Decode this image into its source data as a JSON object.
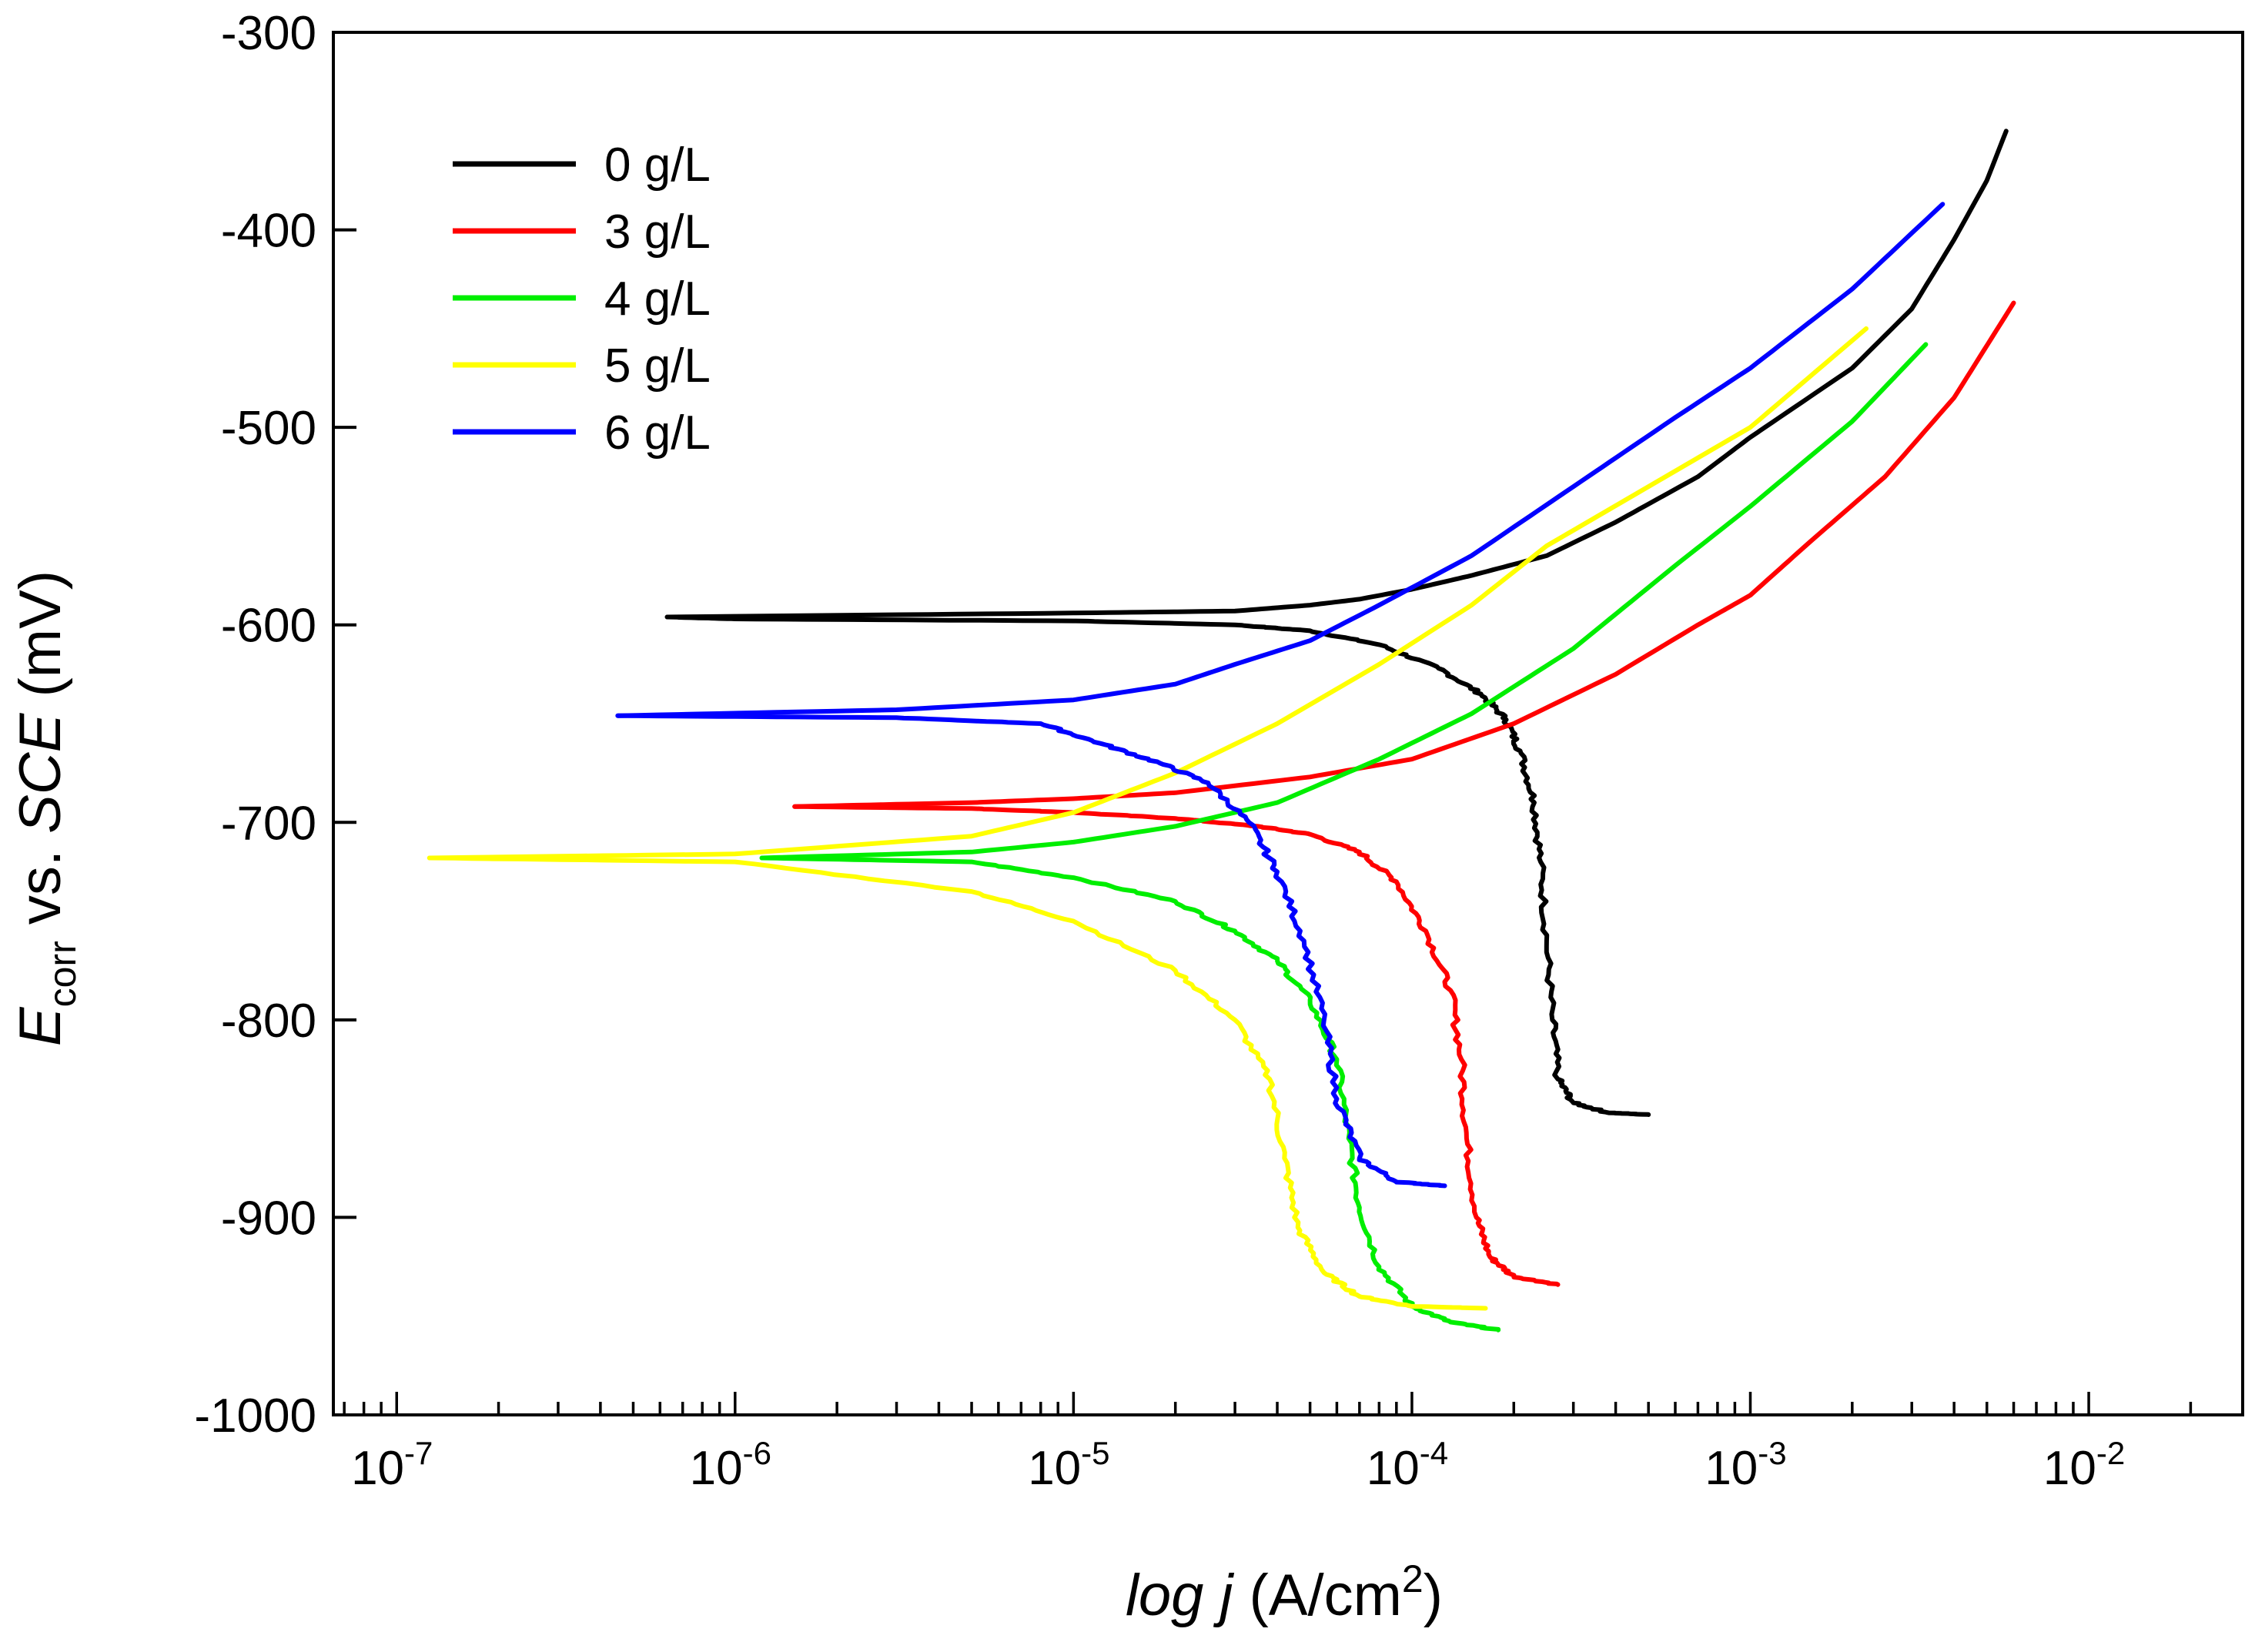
{
  "chart_data": {
    "type": "line",
    "title": "",
    "xlabel": {
      "italic": "log j",
      "text": " (A/cm",
      "sup": "2",
      "close": ")"
    },
    "ylabel": {
      "main": "E",
      "sub": "corr",
      "text": " vs. ",
      "italic": "SCE",
      "unit": " (mV)"
    },
    "x_scale": "log",
    "xlim": [
      6.5e-08,
      0.0285
    ],
    "ylim": [
      -1000,
      -300
    ],
    "x_ticks": [
      {
        "value": 1e-07,
        "base": "10",
        "exp": "-7"
      },
      {
        "value": 1e-06,
        "base": "10",
        "exp": "-6"
      },
      {
        "value": 1e-05,
        "base": "10",
        "exp": "-5"
      },
      {
        "value": 0.0001,
        "base": "10",
        "exp": "-4"
      },
      {
        "value": 0.001,
        "base": "10",
        "exp": "-3"
      },
      {
        "value": 0.01,
        "base": "10",
        "exp": "-2"
      }
    ],
    "y_ticks": [
      {
        "value": -300,
        "label": "-300"
      },
      {
        "value": -400,
        "label": "-400"
      },
      {
        "value": -500,
        "label": "-500"
      },
      {
        "value": -600,
        "label": "-600"
      },
      {
        "value": -700,
        "label": "-700"
      },
      {
        "value": -800,
        "label": "-800"
      },
      {
        "value": -900,
        "label": "-900"
      },
      {
        "value": -1000,
        "label": "-1000"
      }
    ],
    "grid": false,
    "legend_position": "top-left",
    "series": [
      {
        "name": "0 g/L",
        "color": "#000000",
        "cathodic": [
          [
            6.3e-07,
            -596
          ],
          [
            1e-06,
            -597
          ],
          [
            1e-05,
            -598
          ],
          [
            3e-05,
            -600
          ],
          [
            5e-05,
            -603
          ],
          [
            8e-05,
            -610
          ],
          [
            0.00012,
            -622
          ],
          [
            0.00016,
            -635
          ],
          [
            0.00019,
            -648
          ],
          [
            0.00021,
            -665
          ],
          [
            0.00023,
            -690
          ],
          [
            0.00024,
            -720
          ],
          [
            0.00025,
            -760
          ],
          [
            0.00026,
            -800
          ],
          [
            0.00027,
            -830
          ],
          [
            0.0003,
            -842
          ],
          [
            0.00038,
            -847
          ],
          [
            0.0005,
            -848
          ]
        ],
        "anodic": [
          [
            6.3e-07,
            -596
          ],
          [
            1e-05,
            -594
          ],
          [
            3e-05,
            -593
          ],
          [
            5e-05,
            -590
          ],
          [
            7e-05,
            -587
          ],
          [
            0.0001,
            -582
          ],
          [
            0.00015,
            -575
          ],
          [
            0.00025,
            -565
          ],
          [
            0.0004,
            -548
          ],
          [
            0.0007,
            -525
          ],
          [
            0.001,
            -505
          ],
          [
            0.002,
            -470
          ],
          [
            0.003,
            -440
          ],
          [
            0.004,
            -405
          ],
          [
            0.005,
            -375
          ],
          [
            0.0057,
            -350
          ]
        ]
      },
      {
        "name": "3 g/L",
        "color": "#ff0000",
        "cathodic": [
          [
            1.5e-06,
            -692
          ],
          [
            5e-06,
            -693
          ],
          [
            1e-05,
            -695
          ],
          [
            2e-05,
            -698
          ],
          [
            3.5e-05,
            -702
          ],
          [
            5e-05,
            -706
          ],
          [
            7e-05,
            -715
          ],
          [
            9e-05,
            -730
          ],
          [
            0.00011,
            -755
          ],
          [
            0.00013,
            -785
          ],
          [
            0.00014,
            -820
          ],
          [
            0.000145,
            -860
          ],
          [
            0.000155,
            -900
          ],
          [
            0.00017,
            -920
          ],
          [
            0.0002,
            -930
          ],
          [
            0.00027,
            -934
          ]
        ],
        "anodic": [
          [
            1.5e-06,
            -692
          ],
          [
            5e-06,
            -690
          ],
          [
            1e-05,
            -688
          ],
          [
            2e-05,
            -685
          ],
          [
            5e-05,
            -677
          ],
          [
            0.0001,
            -668
          ],
          [
            0.0002,
            -650
          ],
          [
            0.0004,
            -625
          ],
          [
            0.0007,
            -600
          ],
          [
            0.001,
            -585
          ],
          [
            0.0015,
            -558
          ],
          [
            0.0025,
            -525
          ],
          [
            0.004,
            -485
          ],
          [
            0.006,
            -437
          ]
        ]
      },
      {
        "name": "4 g/L",
        "color": "#00ee00",
        "cathodic": [
          [
            1.2e-06,
            -718
          ],
          [
            5e-06,
            -720
          ],
          [
            1e-05,
            -728
          ],
          [
            2e-05,
            -740
          ],
          [
            3e-05,
            -755
          ],
          [
            4e-05,
            -770
          ],
          [
            5e-05,
            -790
          ],
          [
            6e-05,
            -820
          ],
          [
            6.5e-05,
            -860
          ],
          [
            7e-05,
            -895
          ],
          [
            8e-05,
            -925
          ],
          [
            0.0001,
            -945
          ],
          [
            0.00013,
            -953
          ],
          [
            0.00018,
            -957
          ]
        ],
        "anodic": [
          [
            1.2e-06,
            -718
          ],
          [
            5e-06,
            -715
          ],
          [
            1e-05,
            -710
          ],
          [
            2e-05,
            -702
          ],
          [
            4e-05,
            -690
          ],
          [
            8e-05,
            -668
          ],
          [
            0.00015,
            -645
          ],
          [
            0.0003,
            -612
          ],
          [
            0.0006,
            -570
          ],
          [
            0.001,
            -540
          ],
          [
            0.002,
            -497
          ],
          [
            0.0033,
            -458
          ]
        ]
      },
      {
        "name": "5 g/L",
        "color": "#ffff00",
        "cathodic": [
          [
            1.25e-07,
            -718
          ],
          [
            1e-06,
            -720
          ],
          [
            5e-06,
            -735
          ],
          [
            1e-05,
            -750
          ],
          [
            2e-05,
            -775
          ],
          [
            3e-05,
            -800
          ],
          [
            3.8e-05,
            -830
          ],
          [
            4.2e-05,
            -870
          ],
          [
            4.6e-05,
            -905
          ],
          [
            5.5e-05,
            -928
          ],
          [
            7e-05,
            -940
          ],
          [
            0.0001,
            -945
          ],
          [
            0.000165,
            -946
          ]
        ],
        "anodic": [
          [
            1.25e-07,
            -718
          ],
          [
            1e-06,
            -716
          ],
          [
            5e-06,
            -707
          ],
          [
            1e-05,
            -695
          ],
          [
            2e-05,
            -675
          ],
          [
            4e-05,
            -650
          ],
          [
            8e-05,
            -620
          ],
          [
            0.00015,
            -590
          ],
          [
            0.00025,
            -560
          ],
          [
            0.0005,
            -530
          ],
          [
            0.001,
            -500
          ],
          [
            0.0022,
            -450
          ]
        ]
      },
      {
        "name": "6 g/L",
        "color": "#0000ff",
        "cathodic": [
          [
            4.5e-07,
            -646
          ],
          [
            3e-06,
            -647
          ],
          [
            8e-06,
            -650
          ],
          [
            1.2e-05,
            -660
          ],
          [
            1.8e-05,
            -670
          ],
          [
            2.5e-05,
            -680
          ],
          [
            3.3e-05,
            -700
          ],
          [
            4e-05,
            -725
          ],
          [
            4.8e-05,
            -760
          ],
          [
            5.5e-05,
            -800
          ],
          [
            6e-05,
            -840
          ],
          [
            7e-05,
            -870
          ],
          [
            9e-05,
            -882
          ],
          [
            0.000125,
            -884
          ]
        ],
        "anodic": [
          [
            4.5e-07,
            -646
          ],
          [
            3e-06,
            -643
          ],
          [
            1e-05,
            -638
          ],
          [
            2e-05,
            -630
          ],
          [
            3e-05,
            -620
          ],
          [
            5e-05,
            -608
          ],
          [
            8e-05,
            -590
          ],
          [
            0.00015,
            -565
          ],
          [
            0.0003,
            -530
          ],
          [
            0.0006,
            -495
          ],
          [
            0.001,
            -470
          ],
          [
            0.002,
            -430
          ],
          [
            0.0037,
            -387
          ]
        ]
      }
    ]
  }
}
